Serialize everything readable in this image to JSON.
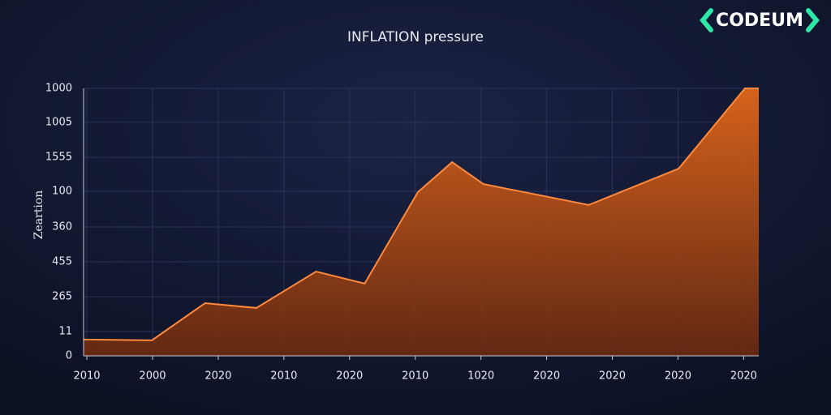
{
  "logo": "CODEUM",
  "chart_data": {
    "type": "area",
    "title": "INFLATION pressure",
    "y_label": "Zeartion",
    "x": [
      -0.05,
      0.99,
      1.8,
      2.58,
      3.49,
      4.23,
      5.04,
      5.56,
      6.04,
      7.64,
      9.01,
      10.02,
      10.23
    ],
    "values": [
      61,
      58,
      197,
      179,
      315,
      270,
      612,
      724,
      642,
      564,
      700,
      1000,
      1000
    ],
    "color": "#ff8a3d",
    "xlim": [
      -0.05,
      10.23
    ],
    "xticks": [
      {
        "value": 0,
        "label": "2010"
      },
      {
        "value": 1,
        "label": "2000"
      },
      {
        "value": 2,
        "label": "2020"
      },
      {
        "value": 3,
        "label": "2010"
      },
      {
        "value": 4,
        "label": "2020"
      },
      {
        "value": 5,
        "label": "2010"
      },
      {
        "value": 6,
        "label": "1020"
      },
      {
        "value": 7,
        "label": "2020"
      },
      {
        "value": 8,
        "label": "2020"
      },
      {
        "value": 9,
        "label": "2020"
      },
      {
        "value": 10,
        "label": "2020"
      }
    ],
    "ylim": [
      0,
      1000
    ],
    "yticks": [
      0,
      {
        "value": 91,
        "label": "11"
      },
      {
        "value": 221,
        "label": "265"
      },
      {
        "value": 352,
        "label": "455"
      },
      {
        "value": 482,
        "label": "360"
      },
      {
        "value": 615,
        "label": "100"
      },
      {
        "value": 742,
        "label": "1555"
      },
      {
        "value": 873,
        "label": "1005"
      },
      1000
    ],
    "grid": true
  }
}
